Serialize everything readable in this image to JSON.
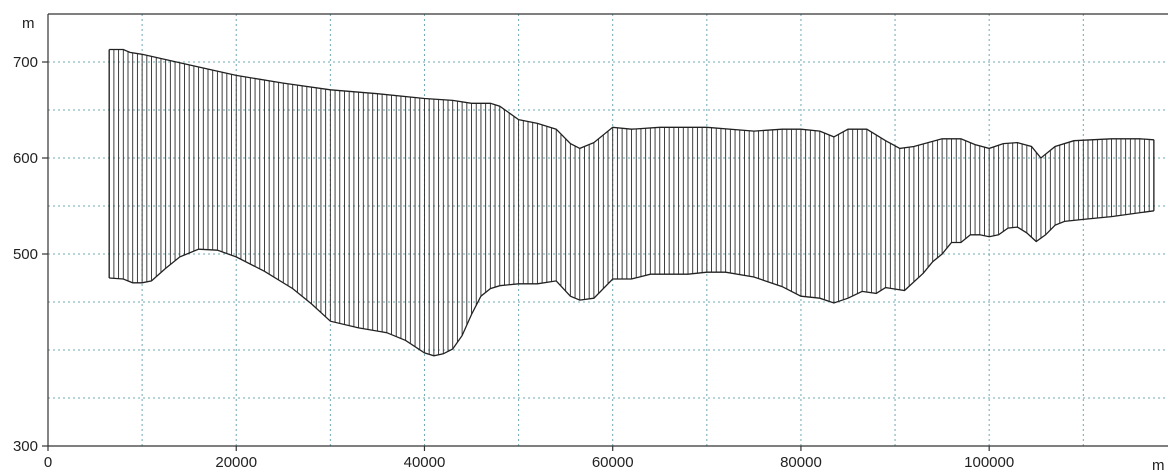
{
  "chart_data": {
    "type": "area",
    "title": "",
    "xlabel": "m",
    "ylabel": "m",
    "xlim": [
      0,
      119000
    ],
    "ylim": [
      300,
      750
    ],
    "x_ticks": [
      0,
      20000,
      40000,
      60000,
      80000,
      100000
    ],
    "y_ticks": [
      300,
      500,
      600,
      700
    ],
    "grid": true,
    "series": [
      {
        "role": "upper",
        "x": [
          6500,
          8000,
          8700,
          10000,
          15000,
          20000,
          25000,
          30000,
          35000,
          40000,
          43000,
          45000,
          47000,
          48000,
          50000,
          52000,
          54000,
          55500,
          56500,
          58000,
          60000,
          62000,
          65000,
          70000,
          75000,
          78000,
          80000,
          82000,
          83500,
          85000,
          87000,
          89000,
          90500,
          92000,
          95000,
          97000,
          98500,
          100000,
          101500,
          103000,
          104500,
          105500,
          107000,
          109000,
          113000,
          116000,
          117500
        ],
        "y": [
          713,
          713,
          710,
          708,
          697,
          686,
          678,
          671,
          667,
          662,
          660,
          657,
          657,
          654,
          640,
          636,
          630,
          615,
          610,
          616,
          632,
          630,
          632,
          632,
          628,
          630,
          630,
          628,
          622,
          630,
          630,
          618,
          610,
          612,
          620,
          620,
          614,
          610,
          615,
          616,
          612,
          600,
          612,
          618,
          620,
          620,
          619
        ]
      },
      {
        "role": "lower",
        "x": [
          6500,
          8000,
          9000,
          10000,
          11000,
          12500,
          14000,
          16000,
          18000,
          20000,
          23000,
          26000,
          28000,
          30000,
          33000,
          36000,
          38000,
          40000,
          41000,
          42000,
          43000,
          44000,
          45000,
          46000,
          47000,
          48000,
          50000,
          52000,
          54000,
          55500,
          56500,
          58000,
          60000,
          61000,
          62000,
          64000,
          66000,
          68000,
          70000,
          72000,
          75000,
          78000,
          80000,
          82000,
          83500,
          85000,
          86500,
          88000,
          89000,
          91000,
          93000,
          94000,
          95000,
          96000,
          97000,
          98000,
          99000,
          100000,
          101000,
          102000,
          103000,
          104000,
          105000,
          106000,
          107000,
          108000,
          110000,
          113000,
          117500
        ],
        "y": [
          475,
          474,
          470,
          470,
          472,
          485,
          497,
          505,
          504,
          497,
          482,
          464,
          448,
          430,
          423,
          418,
          410,
          397,
          394,
          396,
          401,
          415,
          437,
          456,
          464,
          467,
          469,
          469,
          472,
          456,
          452,
          454,
          474,
          474,
          474,
          479,
          479,
          479,
          481,
          481,
          476,
          466,
          456,
          454,
          449,
          454,
          461,
          459,
          465,
          462,
          480,
          492,
          500,
          512,
          512,
          520,
          520,
          518,
          520,
          527,
          528,
          522,
          513,
          520,
          530,
          534,
          536,
          539,
          545
        ]
      }
    ]
  }
}
